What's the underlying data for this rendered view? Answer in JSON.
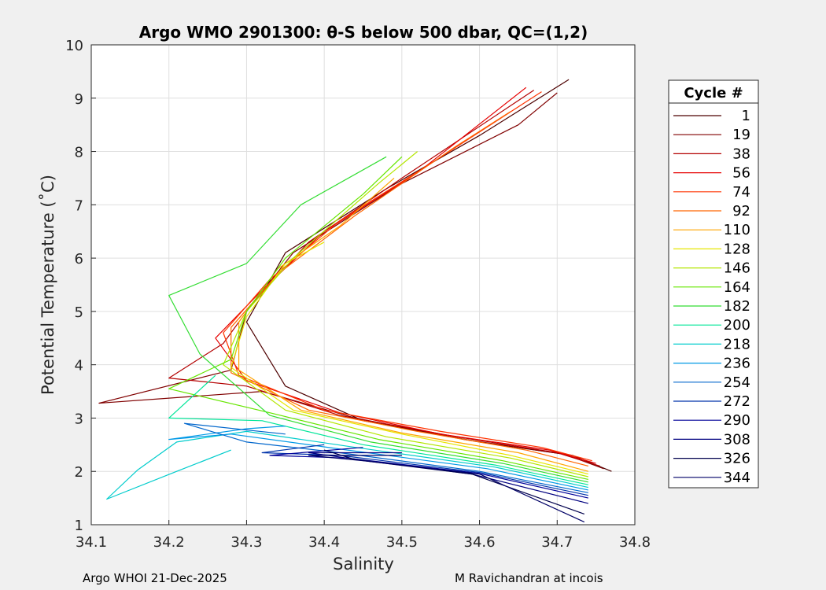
{
  "chart_data": {
    "type": "line",
    "title": "Argo WMO 2901300: θ-S below 500 dbar,  QC=(1,2)",
    "xlabel": "Salinity",
    "ylabel": "Potential Temperature (˚C)",
    "xlim": [
      34.1,
      34.8
    ],
    "ylim": [
      1,
      10
    ],
    "x_ticks": [
      "34.1",
      "34.2",
      "34.3",
      "34.4",
      "34.5",
      "34.6",
      "34.7",
      "34.8"
    ],
    "y_ticks": [
      "1",
      "2",
      "3",
      "4",
      "5",
      "6",
      "7",
      "8",
      "9",
      "10"
    ],
    "grid": true,
    "legend_title": "Cycle #",
    "legend_position": "outside-right",
    "series": [
      {
        "name": "1",
        "color": "#4d0000",
        "points": [
          [
            34.77,
            2.0
          ],
          [
            34.72,
            2.3
          ],
          [
            34.6,
            2.55
          ],
          [
            34.45,
            2.95
          ],
          [
            34.35,
            3.6
          ],
          [
            34.3,
            4.8
          ],
          [
            34.35,
            6.1
          ],
          [
            34.48,
            7.3
          ],
          [
            34.6,
            8.3
          ],
          [
            34.715,
            9.35
          ]
        ]
      },
      {
        "name": "19",
        "color": "#800000",
        "points": [
          [
            34.76,
            2.05
          ],
          [
            34.71,
            2.32
          ],
          [
            34.58,
            2.6
          ],
          [
            34.44,
            3.0
          ],
          [
            34.32,
            3.5
          ],
          [
            34.11,
            3.28
          ],
          [
            34.28,
            3.9
          ],
          [
            34.3,
            5.0
          ],
          [
            34.36,
            6.1
          ],
          [
            34.5,
            7.4
          ],
          [
            34.65,
            8.5
          ],
          [
            34.7,
            9.1
          ]
        ]
      },
      {
        "name": "38",
        "color": "#b30000",
        "points": [
          [
            34.755,
            2.1
          ],
          [
            34.7,
            2.35
          ],
          [
            34.57,
            2.65
          ],
          [
            34.42,
            3.05
          ],
          [
            34.3,
            3.6
          ],
          [
            34.2,
            3.75
          ],
          [
            34.27,
            4.4
          ],
          [
            34.31,
            5.2
          ],
          [
            34.38,
            6.3
          ],
          [
            34.5,
            7.5
          ],
          [
            34.67,
            9.15
          ]
        ]
      },
      {
        "name": "56",
        "color": "#e60000",
        "points": [
          [
            34.75,
            2.15
          ],
          [
            34.69,
            2.4
          ],
          [
            34.55,
            2.7
          ],
          [
            34.42,
            3.1
          ],
          [
            34.3,
            3.7
          ],
          [
            34.26,
            4.5
          ],
          [
            34.32,
            5.4
          ],
          [
            34.4,
            6.5
          ],
          [
            34.52,
            7.6
          ],
          [
            34.66,
            9.2
          ]
        ]
      },
      {
        "name": "74",
        "color": "#ff3300",
        "points": [
          [
            34.745,
            2.2
          ],
          [
            34.68,
            2.45
          ],
          [
            34.55,
            2.75
          ],
          [
            34.4,
            3.15
          ],
          [
            34.29,
            3.8
          ],
          [
            34.27,
            4.6
          ],
          [
            34.33,
            5.6
          ],
          [
            34.42,
            6.7
          ],
          [
            34.54,
            7.8
          ],
          [
            34.68,
            9.12
          ]
        ]
      },
      {
        "name": "92",
        "color": "#ff6600",
        "points": [
          [
            34.74,
            2.1
          ],
          [
            34.66,
            2.4
          ],
          [
            34.52,
            2.75
          ],
          [
            34.38,
            3.15
          ],
          [
            34.28,
            3.85
          ],
          [
            34.28,
            4.7
          ],
          [
            34.34,
            5.7
          ],
          [
            34.44,
            6.8
          ],
          [
            34.57,
            8.1
          ],
          [
            34.64,
            8.75
          ]
        ]
      },
      {
        "name": "110",
        "color": "#ffa500",
        "points": [
          [
            34.74,
            2.0
          ],
          [
            34.65,
            2.35
          ],
          [
            34.5,
            2.72
          ],
          [
            34.37,
            3.15
          ],
          [
            34.29,
            3.9
          ],
          [
            34.29,
            4.8
          ],
          [
            34.34,
            5.8
          ],
          [
            34.42,
            6.6
          ],
          [
            34.49,
            7.5
          ]
        ]
      },
      {
        "name": "128",
        "color": "#e6e600",
        "points": [
          [
            34.74,
            1.95
          ],
          [
            34.64,
            2.3
          ],
          [
            34.5,
            2.7
          ],
          [
            34.36,
            3.15
          ],
          [
            34.28,
            3.95
          ],
          [
            34.3,
            4.9
          ],
          [
            34.35,
            5.9
          ],
          [
            34.4,
            6.3
          ]
        ]
      },
      {
        "name": "146",
        "color": "#b3e600",
        "points": [
          [
            34.74,
            1.9
          ],
          [
            34.64,
            2.25
          ],
          [
            34.48,
            2.65
          ],
          [
            34.35,
            3.15
          ],
          [
            34.27,
            4.0
          ],
          [
            34.3,
            5.0
          ],
          [
            34.36,
            6.0
          ],
          [
            34.47,
            7.4
          ],
          [
            34.52,
            8.0
          ]
        ]
      },
      {
        "name": "164",
        "color": "#66e600",
        "points": [
          [
            34.74,
            1.85
          ],
          [
            34.63,
            2.2
          ],
          [
            34.47,
            2.6
          ],
          [
            34.33,
            3.1
          ],
          [
            34.2,
            3.55
          ],
          [
            34.28,
            4.1
          ],
          [
            34.3,
            5.0
          ],
          [
            34.35,
            6.0
          ],
          [
            34.45,
            7.2
          ],
          [
            34.5,
            7.9
          ]
        ]
      },
      {
        "name": "182",
        "color": "#33dd33",
        "points": [
          [
            34.74,
            1.8
          ],
          [
            34.63,
            2.15
          ],
          [
            34.46,
            2.55
          ],
          [
            34.33,
            3.05
          ],
          [
            34.24,
            4.2
          ],
          [
            34.2,
            5.3
          ],
          [
            34.3,
            5.9
          ],
          [
            34.37,
            7.0
          ],
          [
            34.48,
            7.9
          ]
        ]
      },
      {
        "name": "200",
        "color": "#00e699",
        "points": [
          [
            34.74,
            1.75
          ],
          [
            34.62,
            2.12
          ],
          [
            34.45,
            2.5
          ],
          [
            34.32,
            2.95
          ],
          [
            34.2,
            3.0
          ],
          [
            34.26,
            3.8
          ]
        ]
      },
      {
        "name": "218",
        "color": "#00cccc",
        "points": [
          [
            34.74,
            1.7
          ],
          [
            34.62,
            2.08
          ],
          [
            34.44,
            2.45
          ],
          [
            34.3,
            2.75
          ],
          [
            34.21,
            2.55
          ],
          [
            34.16,
            2.03
          ],
          [
            34.12,
            1.48
          ],
          [
            34.21,
            2.0
          ],
          [
            34.28,
            2.4
          ]
        ]
      },
      {
        "name": "236",
        "color": "#0099e6",
        "points": [
          [
            34.74,
            1.65
          ],
          [
            34.61,
            2.05
          ],
          [
            34.43,
            2.4
          ],
          [
            34.28,
            2.7
          ],
          [
            34.2,
            2.6
          ],
          [
            34.3,
            2.8
          ],
          [
            34.35,
            2.85
          ]
        ]
      },
      {
        "name": "254",
        "color": "#0066cc",
        "points": [
          [
            34.74,
            1.6
          ],
          [
            34.6,
            2.0
          ],
          [
            34.42,
            2.35
          ],
          [
            34.3,
            2.55
          ],
          [
            34.22,
            2.9
          ],
          [
            34.35,
            2.7
          ]
        ]
      },
      {
        "name": "272",
        "color": "#0033aa",
        "points": [
          [
            34.74,
            1.55
          ],
          [
            34.6,
            1.98
          ],
          [
            34.42,
            2.3
          ],
          [
            34.32,
            2.35
          ],
          [
            34.4,
            2.5
          ]
        ]
      },
      {
        "name": "290",
        "color": "#000099",
        "points": [
          [
            34.74,
            1.5
          ],
          [
            34.6,
            1.96
          ],
          [
            34.43,
            2.25
          ],
          [
            34.33,
            2.3
          ],
          [
            34.45,
            2.45
          ]
        ]
      },
      {
        "name": "308",
        "color": "#000080",
        "points": [
          [
            34.74,
            1.4
          ],
          [
            34.59,
            1.95
          ],
          [
            34.43,
            2.25
          ],
          [
            34.38,
            2.35
          ],
          [
            34.5,
            2.35
          ]
        ]
      },
      {
        "name": "326",
        "color": "#00004d",
        "points": [
          [
            34.735,
            1.2
          ],
          [
            34.59,
            1.95
          ],
          [
            34.44,
            2.22
          ],
          [
            34.4,
            2.4
          ]
        ]
      },
      {
        "name": "344",
        "color": "#000066",
        "points": [
          [
            34.735,
            1.05
          ],
          [
            34.6,
            1.95
          ],
          [
            34.45,
            2.2
          ],
          [
            34.38,
            2.3
          ],
          [
            34.5,
            2.3
          ]
        ]
      }
    ]
  },
  "footer": {
    "left": "Argo WHOI 21-Dec-2025",
    "right": "M Ravichandran at incois"
  }
}
